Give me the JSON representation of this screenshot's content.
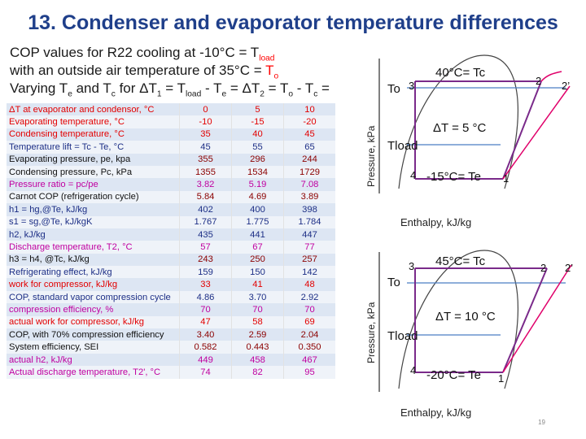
{
  "slide": {
    "title": "13. Condenser and evaporator temperature differences",
    "intro_line1": "COP values for R22 cooling at -10°C = T",
    "intro_line1_sub": "load",
    "intro_line2_a": "with an outside air temperature of 35°C = ",
    "intro_line2_b": "T",
    "intro_line2_sub": "o",
    "intro_line3": "Varying T",
    "intro_line3_e": "e",
    "intro_line3_b": " and T",
    "intro_line3_c": "c",
    "intro_line3_d": " for ΔT",
    "intro_line3_1": "1",
    "intro_line3_eq": " = T",
    "intro_line3_load": "load",
    "intro_line3_rest": " - T",
    "intro_line3_e2": "e",
    "intro_line3_rest2": " = ΔT",
    "intro_line3_2": "2",
    "intro_line3_rest3": " = T",
    "intro_line3_o": "o",
    "intro_line3_rest4": " - T",
    "intro_line3_c2": "c",
    "intro_line3_rest5": " =",
    "slide_number": "19"
  },
  "table": {
    "rows": [
      {
        "label": "ΔT at evaporator and condensor, °C",
        "values": [
          "0",
          "5",
          "10"
        ],
        "style": "red-row"
      },
      {
        "label": "Evaporating temperature, °C",
        "values": [
          "-10",
          "-15",
          "-20"
        ],
        "style": "red-row"
      },
      {
        "label": "Condensing temperature, °C",
        "values": [
          "35",
          "40",
          "45"
        ],
        "style": "red-row"
      },
      {
        "label": "Temperature lift = Tc - Te, °C",
        "values": [
          "45",
          "55",
          "65"
        ],
        "style": "blue-row"
      },
      {
        "label": "Evaporating pressure, pe, kpa",
        "values": [
          "355",
          "296",
          "244"
        ],
        "style": "black-row"
      },
      {
        "label": "Condensing pressure, Pc, kPa",
        "values": [
          "1355",
          "1534",
          "1729"
        ],
        "style": "black-row"
      },
      {
        "label": "Pressure ratio = pc/pe",
        "values": [
          "3.82",
          "5.19",
          "7.08"
        ],
        "style": "magenta-row"
      },
      {
        "label": "Carnot COP (refrigeration cycle)",
        "values": [
          "5.84",
          "4.69",
          "3.89"
        ],
        "style": "black-row"
      },
      {
        "label": "h1 = hg,@Te, kJ/kg",
        "values": [
          "402",
          "400",
          "398"
        ],
        "style": "blue-row"
      },
      {
        "label": "s1 = sg,@Te, kJ/kgK",
        "values": [
          "1.767",
          "1.775",
          "1.784"
        ],
        "style": "blue-row"
      },
      {
        "label": "h2, kJ/kg",
        "values": [
          "435",
          "441",
          "447"
        ],
        "style": "blue-row"
      },
      {
        "label": "Discharge temperature, T2, °C",
        "values": [
          "57",
          "67",
          "77"
        ],
        "style": "magenta-row"
      },
      {
        "label": "h3 = h4, @Tc, kJ/kg",
        "values": [
          "243",
          "250",
          "257"
        ],
        "style": "black-row"
      },
      {
        "label": "Refrigerating effect, kJ/kg",
        "values": [
          "159",
          "150",
          "142"
        ],
        "style": "blue-row"
      },
      {
        "label": "work for compressor, kJ/kg",
        "values": [
          "33",
          "41",
          "48"
        ],
        "style": "red-row"
      },
      {
        "label": "COP, standard vapor compression cycle",
        "values": [
          "4.86",
          "3.70",
          "2.92"
        ],
        "style": "blue-row"
      },
      {
        "label": "compression efficiency, %",
        "values": [
          "70",
          "70",
          "70"
        ],
        "style": "magenta-row"
      },
      {
        "label": "actual work for compressor, kJ/kg",
        "values": [
          "47",
          "58",
          "69"
        ],
        "style": "red-row"
      },
      {
        "label": "COP, with 70% compression efficiency",
        "values": [
          "3.40",
          "2.59",
          "2.04"
        ],
        "style": "black-row"
      },
      {
        "label": "System efficiency, SEI",
        "values": [
          "0.582",
          "0.443",
          "0.350"
        ],
        "style": "black-row"
      },
      {
        "label": "actual h2, kJ/kg",
        "values": [
          "449",
          "458",
          "467"
        ],
        "style": "magenta-row"
      },
      {
        "label": "Actual discharge temperature, T2', °C",
        "values": [
          "74",
          "82",
          "95"
        ],
        "style": "magenta-row"
      }
    ]
  },
  "diagram_top": {
    "y_axis_label": "Pressure, kPa",
    "x_axis_label": "Enthalpy, kJ/kg",
    "condensing_label": "40°C= Tc",
    "evaporating_label": "-15°C= Te",
    "delta_label": "ΔT = 5 °C",
    "t_outdoor_label": "To",
    "t_load_label": "Tload",
    "point_1": "1",
    "point_2": "2",
    "point_2p": "2’",
    "point_3": "3",
    "point_4": "4"
  },
  "diagram_bottom": {
    "y_axis_label": "Pressure, kPa",
    "x_axis_label": "Enthalpy, kJ/kg",
    "condensing_label": "45°C= Tc",
    "evaporating_label": "-20°C= Te",
    "delta_label": "ΔT = 10 °C",
    "t_outdoor_label": "To",
    "t_load_label": "Tload",
    "point_1": "1",
    "point_2": "2",
    "point_2p": "2’",
    "point_3": "3",
    "point_4": "4"
  }
}
